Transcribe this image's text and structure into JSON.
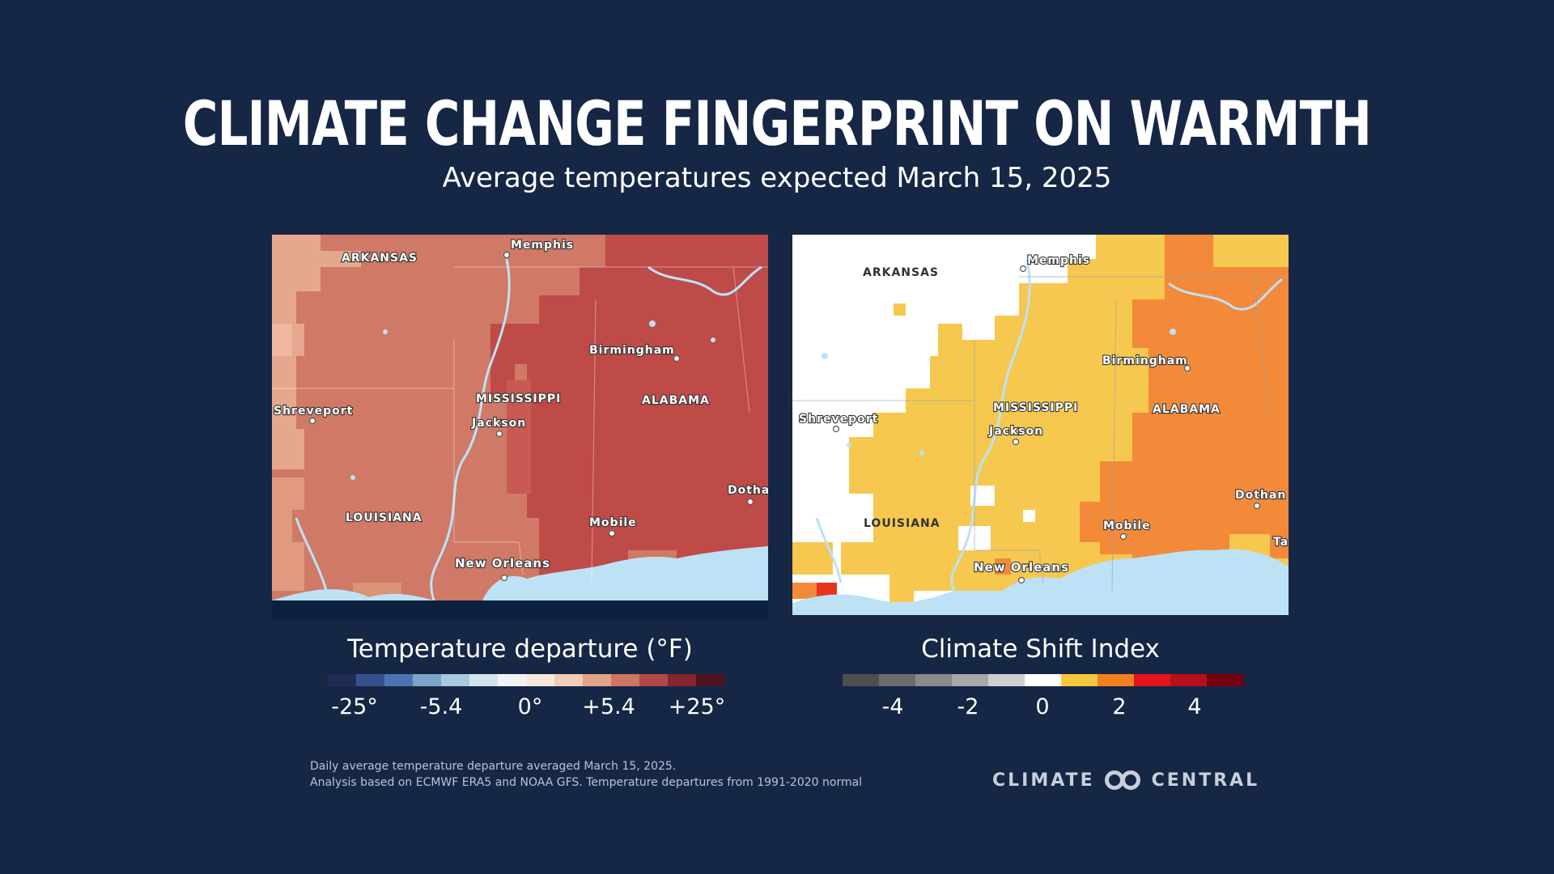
{
  "title": "CLIMATE CHANGE FINGERPRINT ON WARMTH",
  "subtitle": "Average temperatures expected March 15, 2025",
  "maps": {
    "temperature": {
      "labels": {
        "arkansas": "ARKANSAS",
        "memphis": "Memphis",
        "birmingham": "Birmingham",
        "shreveport": "Shreveport",
        "mississippi": "MISSISSIPPI",
        "alabama": "ALABAMA",
        "jackson": "Jackson",
        "dothan": "Dotha",
        "louisiana": "LOUISIANA",
        "mobile": "Mobile",
        "new_orleans": "New Orleans"
      }
    },
    "csi": {
      "labels": {
        "arkansas": "ARKANSAS",
        "memphis": "Memphis",
        "birmingham": "Birmingham",
        "shreveport": "Shreveport",
        "mississippi": "MISSISSIPPI",
        "alabama": "ALABAMA",
        "jackson": "Jackson",
        "dothan": "Dothan",
        "louisiana": "LOUISIANA",
        "mobile": "Mobile",
        "new_orleans": "New Orleans",
        "tallahassee": "Ta"
      }
    }
  },
  "legend_temp": {
    "title": "Temperature departure (°F)",
    "ticks": [
      "-25°",
      "-5.4",
      "0°",
      "+5.4",
      "+25°"
    ],
    "colors": [
      "#1f2d56",
      "#34508f",
      "#4b74b2",
      "#7ca3cc",
      "#a9c8df",
      "#d4e4ef",
      "#f1f4f6",
      "#f6e8dd",
      "#f1ccb8",
      "#e2a486",
      "#cc755f",
      "#b2474a",
      "#85252f",
      "#4d1420"
    ]
  },
  "legend_csi": {
    "title": "Climate Shift Index",
    "ticks": [
      "-4",
      "-2",
      "0",
      "2",
      "4"
    ],
    "colors": [
      "#4e4e4e",
      "#6c6c6c",
      "#8a8a8a",
      "#a8a8a8",
      "#cfcfcf",
      "#ffffff",
      "#f8c63d",
      "#f27f20",
      "#e3141b",
      "#b50f1b",
      "#75000e"
    ]
  },
  "footnote": {
    "line1": "Daily average temperature departure averaged  March 15, 2025.",
    "line2": "Analysis based on ECMWF ERA5 and NOAA GFS. Temperature departures from 1991-2020 normal"
  },
  "brand": {
    "left": "CLIMATE",
    "right": "CENTRAL"
  }
}
